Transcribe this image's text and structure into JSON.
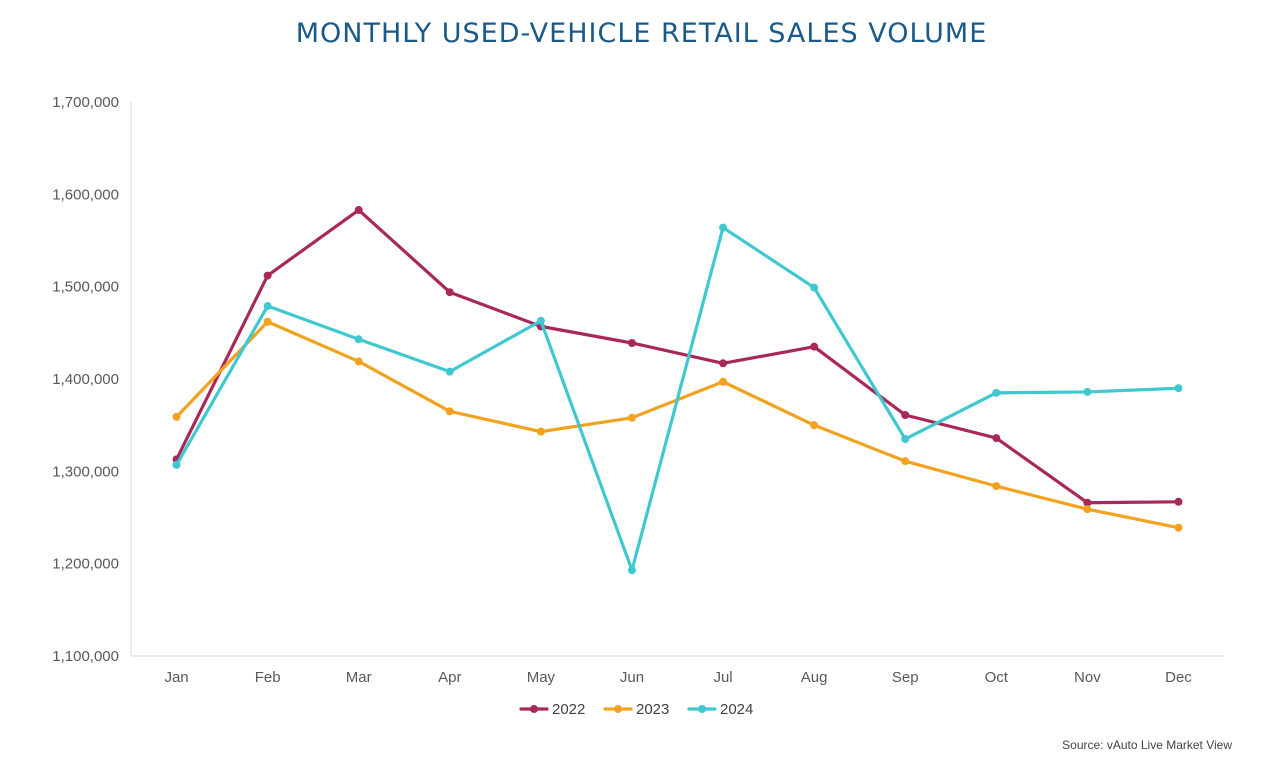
{
  "chart_data": {
    "type": "line",
    "title": "MONTHLY USED-VEHICLE RETAIL SALES VOLUME",
    "xlabel": "",
    "ylabel": "",
    "categories": [
      "Jan",
      "Feb",
      "Mar",
      "Apr",
      "May",
      "Jun",
      "Jul",
      "Aug",
      "Sep",
      "Oct",
      "Nov",
      "Dec"
    ],
    "ylim": [
      1100000,
      1700000
    ],
    "yticks": [
      1100000,
      1200000,
      1300000,
      1400000,
      1500000,
      1600000,
      1700000
    ],
    "ytick_labels": [
      "1,100,000",
      "1,200,000",
      "1,300,000",
      "1,400,000",
      "1,500,000",
      "1,600,000",
      "1,700,000"
    ],
    "grid": false,
    "legend_position": "bottom",
    "series": [
      {
        "name": "2022",
        "color": "#a8285a",
        "values": [
          1313000,
          1512000,
          1583000,
          1494000,
          1457000,
          1439000,
          1417000,
          1435000,
          1361000,
          1336000,
          1266000,
          1267000
        ]
      },
      {
        "name": "2023",
        "color": "#f2a21f",
        "values": [
          1359000,
          1462000,
          1419000,
          1365000,
          1343000,
          1358000,
          1397000,
          1350000,
          1311000,
          1284000,
          1259000,
          1239000
        ]
      },
      {
        "name": "2024",
        "color": "#3fc8d0",
        "values": [
          1307000,
          1479000,
          1443000,
          1408000,
          1463000,
          1193000,
          1564000,
          1499000,
          1335000,
          1385000,
          1386000,
          1390000
        ]
      }
    ]
  },
  "source": "Source: vAuto Live Market View"
}
